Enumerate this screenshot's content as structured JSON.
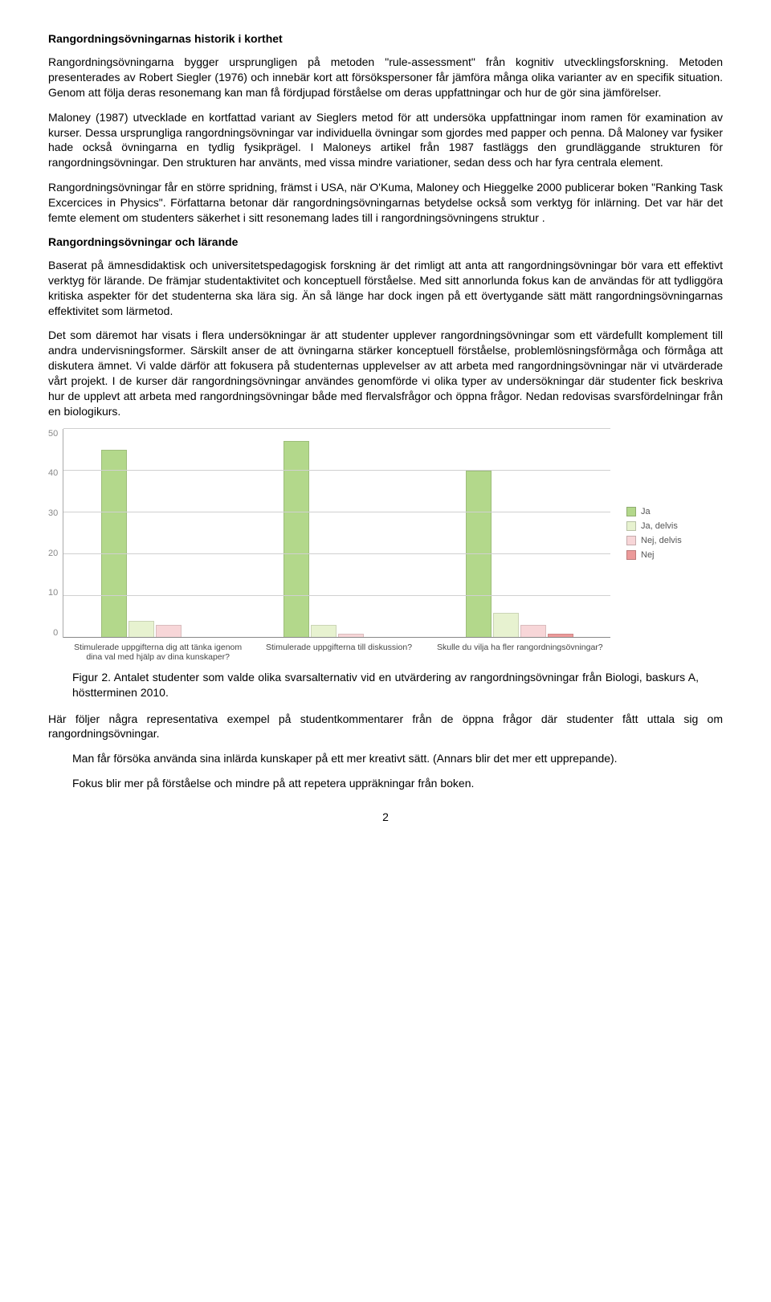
{
  "h1": "Rangordningsövningarnas historik i korthet",
  "p1": "Rangordningsövningarna bygger ursprungligen på metoden \"rule-assessment\" från kognitiv utvecklingsforskning. Metoden presenterades av Robert Siegler (1976) och innebär kort att försökspersoner får jämföra många olika varianter av en specifik situation. Genom att följa deras resonemang kan man få fördjupad förståelse om deras uppfattningar och hur de gör sina jämförelser.",
  "p2": "Maloney (1987) utvecklade en kortfattad variant av Sieglers metod för att undersöka uppfattningar inom ramen för examination av kurser. Dessa ursprungliga rangordningsövningar var individuella övningar som gjordes med papper och penna. Då Maloney var fysiker hade också övningarna en tydlig fysikprägel. I Maloneys artikel från 1987 fastläggs den grundläggande strukturen för rangordningsövningar. Den strukturen har använts, med vissa mindre variationer, sedan dess och har fyra centrala element.",
  "p3": "Rangordningsövningar får en större spridning, främst i USA, när O'Kuma, Maloney och Hieggelke 2000 publicerar boken \"Ranking Task Excercices in Physics\". Författarna betonar där rangordningsövningarnas betydelse också som verktyg för inlärning. Det var här det femte element om studenters säkerhet i sitt resonemang lades till i rangordningsövningens struktur .",
  "h2": "Rangordningsövningar och lärande",
  "p4": "Baserat på ämnesdidaktisk och universitetspedagogisk forskning är det rimligt att anta att rangordningsövningar bör vara ett effektivt verktyg för lärande. De främjar studentaktivitet och konceptuell förståelse. Med sitt annorlunda fokus kan de användas för att tydliggöra kritiska aspekter för det studenterna ska lära sig. Än så länge har dock ingen på ett övertygande sätt mätt rangordningsövningarnas effektivitet som lärmetod.",
  "p5": "Det som däremot har visats i flera undersökningar är att studenter upplever rangordningsövningar som ett värdefullt komplement till andra undervisningsformer. Särskilt anser de att övningarna stärker konceptuell förståelse, problemlösningsförmåga och förmåga att diskutera ämnet. Vi valde därför att fokusera på studenternas upplevelser av att arbeta med rangordningsövningar när vi utvärderade vårt projekt. I de kurser där rangordningsövningar användes genomförde vi olika typer av undersökningar där studenter fick beskriva hur de upplevt att arbeta med rangordningsövningar både med flervalsfrågor och öppna frågor. Nedan redovisas svarsfördelningar från en biologikurs.",
  "chart": {
    "ymax": 50,
    "yticks": [
      50,
      40,
      30,
      20,
      10,
      0
    ],
    "series": [
      {
        "label": "Ja",
        "color": "#b3d88b"
      },
      {
        "label": "Ja, delvis",
        "color": "#e7f2d0"
      },
      {
        "label": "Nej, delvis",
        "color": "#f7d6d8"
      },
      {
        "label": "Nej",
        "color": "#ec9a9a"
      }
    ],
    "groups": [
      {
        "label": "Stimulerade uppgifterna dig att tänka igenom dina val med hjälp av dina kunskaper?",
        "values": [
          45,
          4,
          3,
          0
        ]
      },
      {
        "label": "Stimulerade uppgifterna till diskussion?",
        "values": [
          47,
          3,
          1,
          0
        ]
      },
      {
        "label": "Skulle du vilja ha fler rangordningsövningar?",
        "values": [
          40,
          6,
          3,
          1
        ]
      }
    ]
  },
  "caption": "Figur 2. Antalet studenter som valde olika svarsalternativ vid en utvärdering av rangordningsövningar från Biologi, baskurs A, höstterminen 2010.",
  "p6": "Här följer några representativa exempel på studentkommentarer från de öppna frågor där studenter fått uttala sig om rangordningsövningar.",
  "q1": "Man får försöka använda sina inlärda kunskaper på ett mer kreativt sätt. (Annars blir det mer ett upprepande).",
  "q2": "Fokus blir mer på förståelse och mindre på att repetera uppräkningar från boken.",
  "pagenum": "2"
}
